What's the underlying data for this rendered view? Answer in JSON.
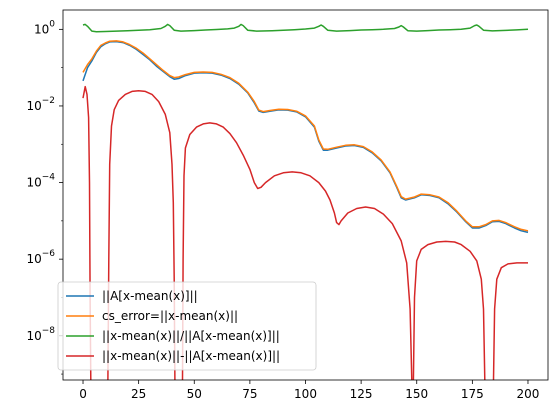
{
  "chart_data": {
    "type": "line",
    "yscale": "log",
    "xlim": [
      -9,
      209
    ],
    "ylim": [
      7e-10,
      3.2
    ],
    "x_ticks": [
      0,
      25,
      50,
      75,
      100,
      125,
      150,
      175,
      200
    ],
    "x_tick_labels": [
      "0",
      "25",
      "50",
      "75",
      "100",
      "125",
      "150",
      "175",
      "200"
    ],
    "y_ticks": [
      {
        "value": 1e-08,
        "base": "10",
        "exp": "−8"
      },
      {
        "value": 1e-06,
        "base": "10",
        "exp": "−6"
      },
      {
        "value": 0.0001,
        "base": "10",
        "exp": "−4"
      },
      {
        "value": 0.01,
        "base": "10",
        "exp": "−2"
      },
      {
        "value": 1,
        "base": "10",
        "exp": "0"
      }
    ],
    "grid": false,
    "legend_position": "lower-left",
    "series": [
      {
        "name": "||A[x-mean(x)]||",
        "color": "#1f77b4",
        "points": [
          [
            0,
            0.045
          ],
          [
            2,
            0.1
          ],
          [
            4,
            0.15
          ],
          [
            6,
            0.25
          ],
          [
            8,
            0.35
          ],
          [
            10,
            0.42
          ],
          [
            12,
            0.47
          ],
          [
            15,
            0.48
          ],
          [
            18,
            0.45
          ],
          [
            21,
            0.38
          ],
          [
            24,
            0.3
          ],
          [
            27,
            0.22
          ],
          [
            30,
            0.16
          ],
          [
            33,
            0.11
          ],
          [
            36,
            0.08
          ],
          [
            39,
            0.058
          ],
          [
            41,
            0.05
          ],
          [
            43,
            0.052
          ],
          [
            46,
            0.062
          ],
          [
            50,
            0.072
          ],
          [
            54,
            0.074
          ],
          [
            58,
            0.072
          ],
          [
            62,
            0.064
          ],
          [
            66,
            0.052
          ],
          [
            70,
            0.037
          ],
          [
            74,
            0.022
          ],
          [
            77,
            0.012
          ],
          [
            79,
            0.0074
          ],
          [
            81,
            0.0068
          ],
          [
            84,
            0.0073
          ],
          [
            88,
            0.0079
          ],
          [
            92,
            0.0078
          ],
          [
            96,
            0.007
          ],
          [
            100,
            0.0052
          ],
          [
            104,
            0.0028
          ],
          [
            106,
            0.0012
          ],
          [
            108,
            0.0007
          ],
          [
            110,
            0.0007
          ],
          [
            114,
            0.0008
          ],
          [
            118,
            0.0009
          ],
          [
            122,
            0.00093
          ],
          [
            126,
            0.00083
          ],
          [
            130,
            0.0006
          ],
          [
            134,
            0.00037
          ],
          [
            138,
            0.00018
          ],
          [
            141,
            7.5e-05
          ],
          [
            143,
            4e-05
          ],
          [
            145,
            3.5e-05
          ],
          [
            149,
            4e-05
          ],
          [
            152,
            4.8e-05
          ],
          [
            156,
            4.6e-05
          ],
          [
            160,
            4e-05
          ],
          [
            164,
            2.8e-05
          ],
          [
            168,
            1.7e-05
          ],
          [
            172,
            9.5e-06
          ],
          [
            175,
            6.5e-06
          ],
          [
            178,
            6.5e-06
          ],
          [
            181,
            7.5e-06
          ],
          [
            184,
            9.5e-06
          ],
          [
            187,
            9.7e-06
          ],
          [
            190,
            8.5e-06
          ],
          [
            194,
            6.5e-06
          ],
          [
            197,
            5.5e-06
          ],
          [
            200,
            5e-06
          ]
        ]
      },
      {
        "name": "cs_error=||x-mean(x)||",
        "color": "#ff7f0e",
        "points": [
          [
            0,
            0.075
          ],
          [
            2,
            0.12
          ],
          [
            4,
            0.17
          ],
          [
            6,
            0.27
          ],
          [
            8,
            0.38
          ],
          [
            10,
            0.44
          ],
          [
            12,
            0.49
          ],
          [
            15,
            0.5
          ],
          [
            18,
            0.47
          ],
          [
            21,
            0.4
          ],
          [
            24,
            0.32
          ],
          [
            27,
            0.24
          ],
          [
            30,
            0.17
          ],
          [
            33,
            0.12
          ],
          [
            36,
            0.085
          ],
          [
            39,
            0.062
          ],
          [
            41,
            0.055
          ],
          [
            43,
            0.057
          ],
          [
            46,
            0.066
          ],
          [
            50,
            0.075
          ],
          [
            54,
            0.077
          ],
          [
            58,
            0.075
          ],
          [
            62,
            0.067
          ],
          [
            66,
            0.055
          ],
          [
            70,
            0.039
          ],
          [
            74,
            0.023
          ],
          [
            77,
            0.013
          ],
          [
            79,
            0.0078
          ],
          [
            81,
            0.0071
          ],
          [
            84,
            0.0076
          ],
          [
            88,
            0.0082
          ],
          [
            92,
            0.0081
          ],
          [
            96,
            0.0073
          ],
          [
            100,
            0.0055
          ],
          [
            104,
            0.003
          ],
          [
            106,
            0.0013
          ],
          [
            108,
            0.00075
          ],
          [
            110,
            0.00074
          ],
          [
            114,
            0.00084
          ],
          [
            118,
            0.00094
          ],
          [
            122,
            0.00097
          ],
          [
            126,
            0.00087
          ],
          [
            130,
            0.00063
          ],
          [
            134,
            0.00039
          ],
          [
            138,
            0.00019
          ],
          [
            141,
            8e-05
          ],
          [
            143,
            4.3e-05
          ],
          [
            145,
            3.7e-05
          ],
          [
            149,
            4.2e-05
          ],
          [
            152,
            5e-05
          ],
          [
            156,
            4.8e-05
          ],
          [
            160,
            4.2e-05
          ],
          [
            164,
            3e-05
          ],
          [
            168,
            1.8e-05
          ],
          [
            172,
            1e-05
          ],
          [
            175,
            7e-06
          ],
          [
            178,
            7e-06
          ],
          [
            181,
            8e-06
          ],
          [
            184,
            1e-05
          ],
          [
            187,
            1.03e-05
          ],
          [
            190,
            9e-06
          ],
          [
            194,
            7e-06
          ],
          [
            197,
            6e-06
          ],
          [
            200,
            5.5e-06
          ]
        ]
      },
      {
        "name": "||x-mean(x)||/||A[x-mean(x)]||",
        "color": "#2ca02c",
        "points": [
          [
            0,
            1.3
          ],
          [
            1,
            1.35
          ],
          [
            2,
            1.2
          ],
          [
            4,
            0.9
          ],
          [
            6,
            0.87
          ],
          [
            10,
            0.88
          ],
          [
            15,
            0.9
          ],
          [
            20,
            0.92
          ],
          [
            25,
            0.95
          ],
          [
            30,
            0.98
          ],
          [
            35,
            1.05
          ],
          [
            37,
            1.2
          ],
          [
            38,
            1.35
          ],
          [
            39,
            1.25
          ],
          [
            41,
            0.95
          ],
          [
            44,
            0.9
          ],
          [
            50,
            0.93
          ],
          [
            55,
            0.96
          ],
          [
            60,
            0.99
          ],
          [
            65,
            1.03
          ],
          [
            68,
            1.08
          ],
          [
            70,
            1.2
          ],
          [
            71,
            1.35
          ],
          [
            72,
            1.25
          ],
          [
            74,
            0.95
          ],
          [
            78,
            0.9
          ],
          [
            85,
            0.92
          ],
          [
            90,
            0.95
          ],
          [
            95,
            0.98
          ],
          [
            100,
            1.02
          ],
          [
            104,
            1.08
          ],
          [
            106,
            1.2
          ],
          [
            107,
            1.3
          ],
          [
            108,
            1.2
          ],
          [
            110,
            0.95
          ],
          [
            114,
            0.9
          ],
          [
            120,
            0.93
          ],
          [
            125,
            0.96
          ],
          [
            130,
            0.98
          ],
          [
            135,
            1.0
          ],
          [
            140,
            1.05
          ],
          [
            142,
            1.15
          ],
          [
            143,
            1.25
          ],
          [
            144,
            1.15
          ],
          [
            146,
            0.92
          ],
          [
            150,
            0.9
          ],
          [
            155,
            0.93
          ],
          [
            160,
            0.96
          ],
          [
            165,
            0.98
          ],
          [
            170,
            1.0
          ],
          [
            174,
            1.08
          ],
          [
            176,
            1.25
          ],
          [
            177,
            1.3
          ],
          [
            178,
            1.2
          ],
          [
            180,
            0.95
          ],
          [
            184,
            0.91
          ],
          [
            190,
            0.94
          ],
          [
            195,
            0.97
          ],
          [
            200,
            1.0
          ]
        ]
      },
      {
        "name": "||x-mean(x)||-||A[x-mean(x)]||",
        "color": "#d62728",
        "points": [
          [
            0,
            0.016
          ],
          [
            1,
            0.032
          ],
          [
            1.8,
            0.02
          ],
          [
            2.5,
            0.005
          ],
          [
            2.9,
            0.0001
          ],
          [
            3.2,
            1e-07
          ],
          [
            3.5,
            7e-10
          ],
          null,
          [
            11.2,
            7e-10
          ],
          [
            11.6,
            1e-06
          ],
          [
            12,
            0.0003
          ],
          [
            12.8,
            0.003
          ],
          [
            14,
            0.008
          ],
          [
            16,
            0.014
          ],
          [
            19,
            0.02
          ],
          [
            22,
            0.024
          ],
          [
            25,
            0.025
          ],
          [
            28,
            0.024
          ],
          [
            31,
            0.02
          ],
          [
            34,
            0.013
          ],
          [
            37,
            0.006
          ],
          [
            39,
            0.002
          ],
          [
            40,
            0.0003
          ],
          [
            40.6,
            3e-05
          ],
          [
            41,
            3e-07
          ],
          [
            41.3,
            7e-10
          ],
          null,
          [
            44.7,
            7e-10
          ],
          [
            45,
            1e-06
          ],
          [
            45.4,
            0.00015
          ],
          [
            46,
            0.0008
          ],
          [
            48,
            0.0018
          ],
          [
            51,
            0.0028
          ],
          [
            54,
            0.0034
          ],
          [
            57,
            0.0036
          ],
          [
            60,
            0.0034
          ],
          [
            63,
            0.0028
          ],
          [
            66,
            0.0019
          ],
          [
            69,
            0.0011
          ],
          [
            72,
            0.00052
          ],
          [
            75,
            0.00022
          ],
          [
            77,
            0.0001
          ],
          [
            78.5,
            7e-05
          ],
          [
            80,
            7.5e-05
          ],
          [
            82,
            0.0001
          ],
          [
            86,
            0.00015
          ],
          [
            90,
            0.00018
          ],
          [
            94,
            0.00019
          ],
          [
            98,
            0.00018
          ],
          [
            102,
            0.00015
          ],
          [
            106,
            0.0001
          ],
          [
            109,
            6e-05
          ],
          [
            111,
            3.5e-05
          ],
          [
            113,
            1.6e-05
          ],
          [
            114,
            9e-06
          ],
          [
            115,
            8e-06
          ],
          [
            116,
            1e-05
          ],
          [
            119,
            1.6e-05
          ],
          [
            123,
            2.1e-05
          ],
          [
            127,
            2.3e-05
          ],
          [
            131,
            2.1e-05
          ],
          [
            135,
            1.5e-05
          ],
          [
            139,
            8.5e-06
          ],
          [
            143,
            3e-06
          ],
          [
            145.5,
            8e-07
          ],
          [
            147,
            5e-08
          ],
          [
            147.8,
            7e-10
          ],
          null,
          [
            148.5,
            7e-10
          ],
          [
            149,
            1e-07
          ],
          [
            150,
            9e-07
          ],
          [
            152,
            1.8e-06
          ],
          [
            155,
            2.4e-06
          ],
          [
            159,
            2.8e-06
          ],
          [
            163,
            2.9e-06
          ],
          [
            167,
            2.8e-06
          ],
          [
            170,
            2.4e-06
          ],
          [
            174,
            1.6e-06
          ],
          [
            177,
            9e-07
          ],
          [
            179,
            3e-07
          ],
          [
            180,
            5e-08
          ],
          [
            180.6,
            7e-10
          ],
          null,
          [
            184.5,
            7e-10
          ],
          [
            185,
            5e-08
          ],
          [
            186,
            3e-07
          ],
          [
            188,
            6e-07
          ],
          [
            191,
            7.5e-07
          ],
          [
            195,
            8e-07
          ],
          [
            200,
            8e-07
          ]
        ]
      }
    ]
  }
}
